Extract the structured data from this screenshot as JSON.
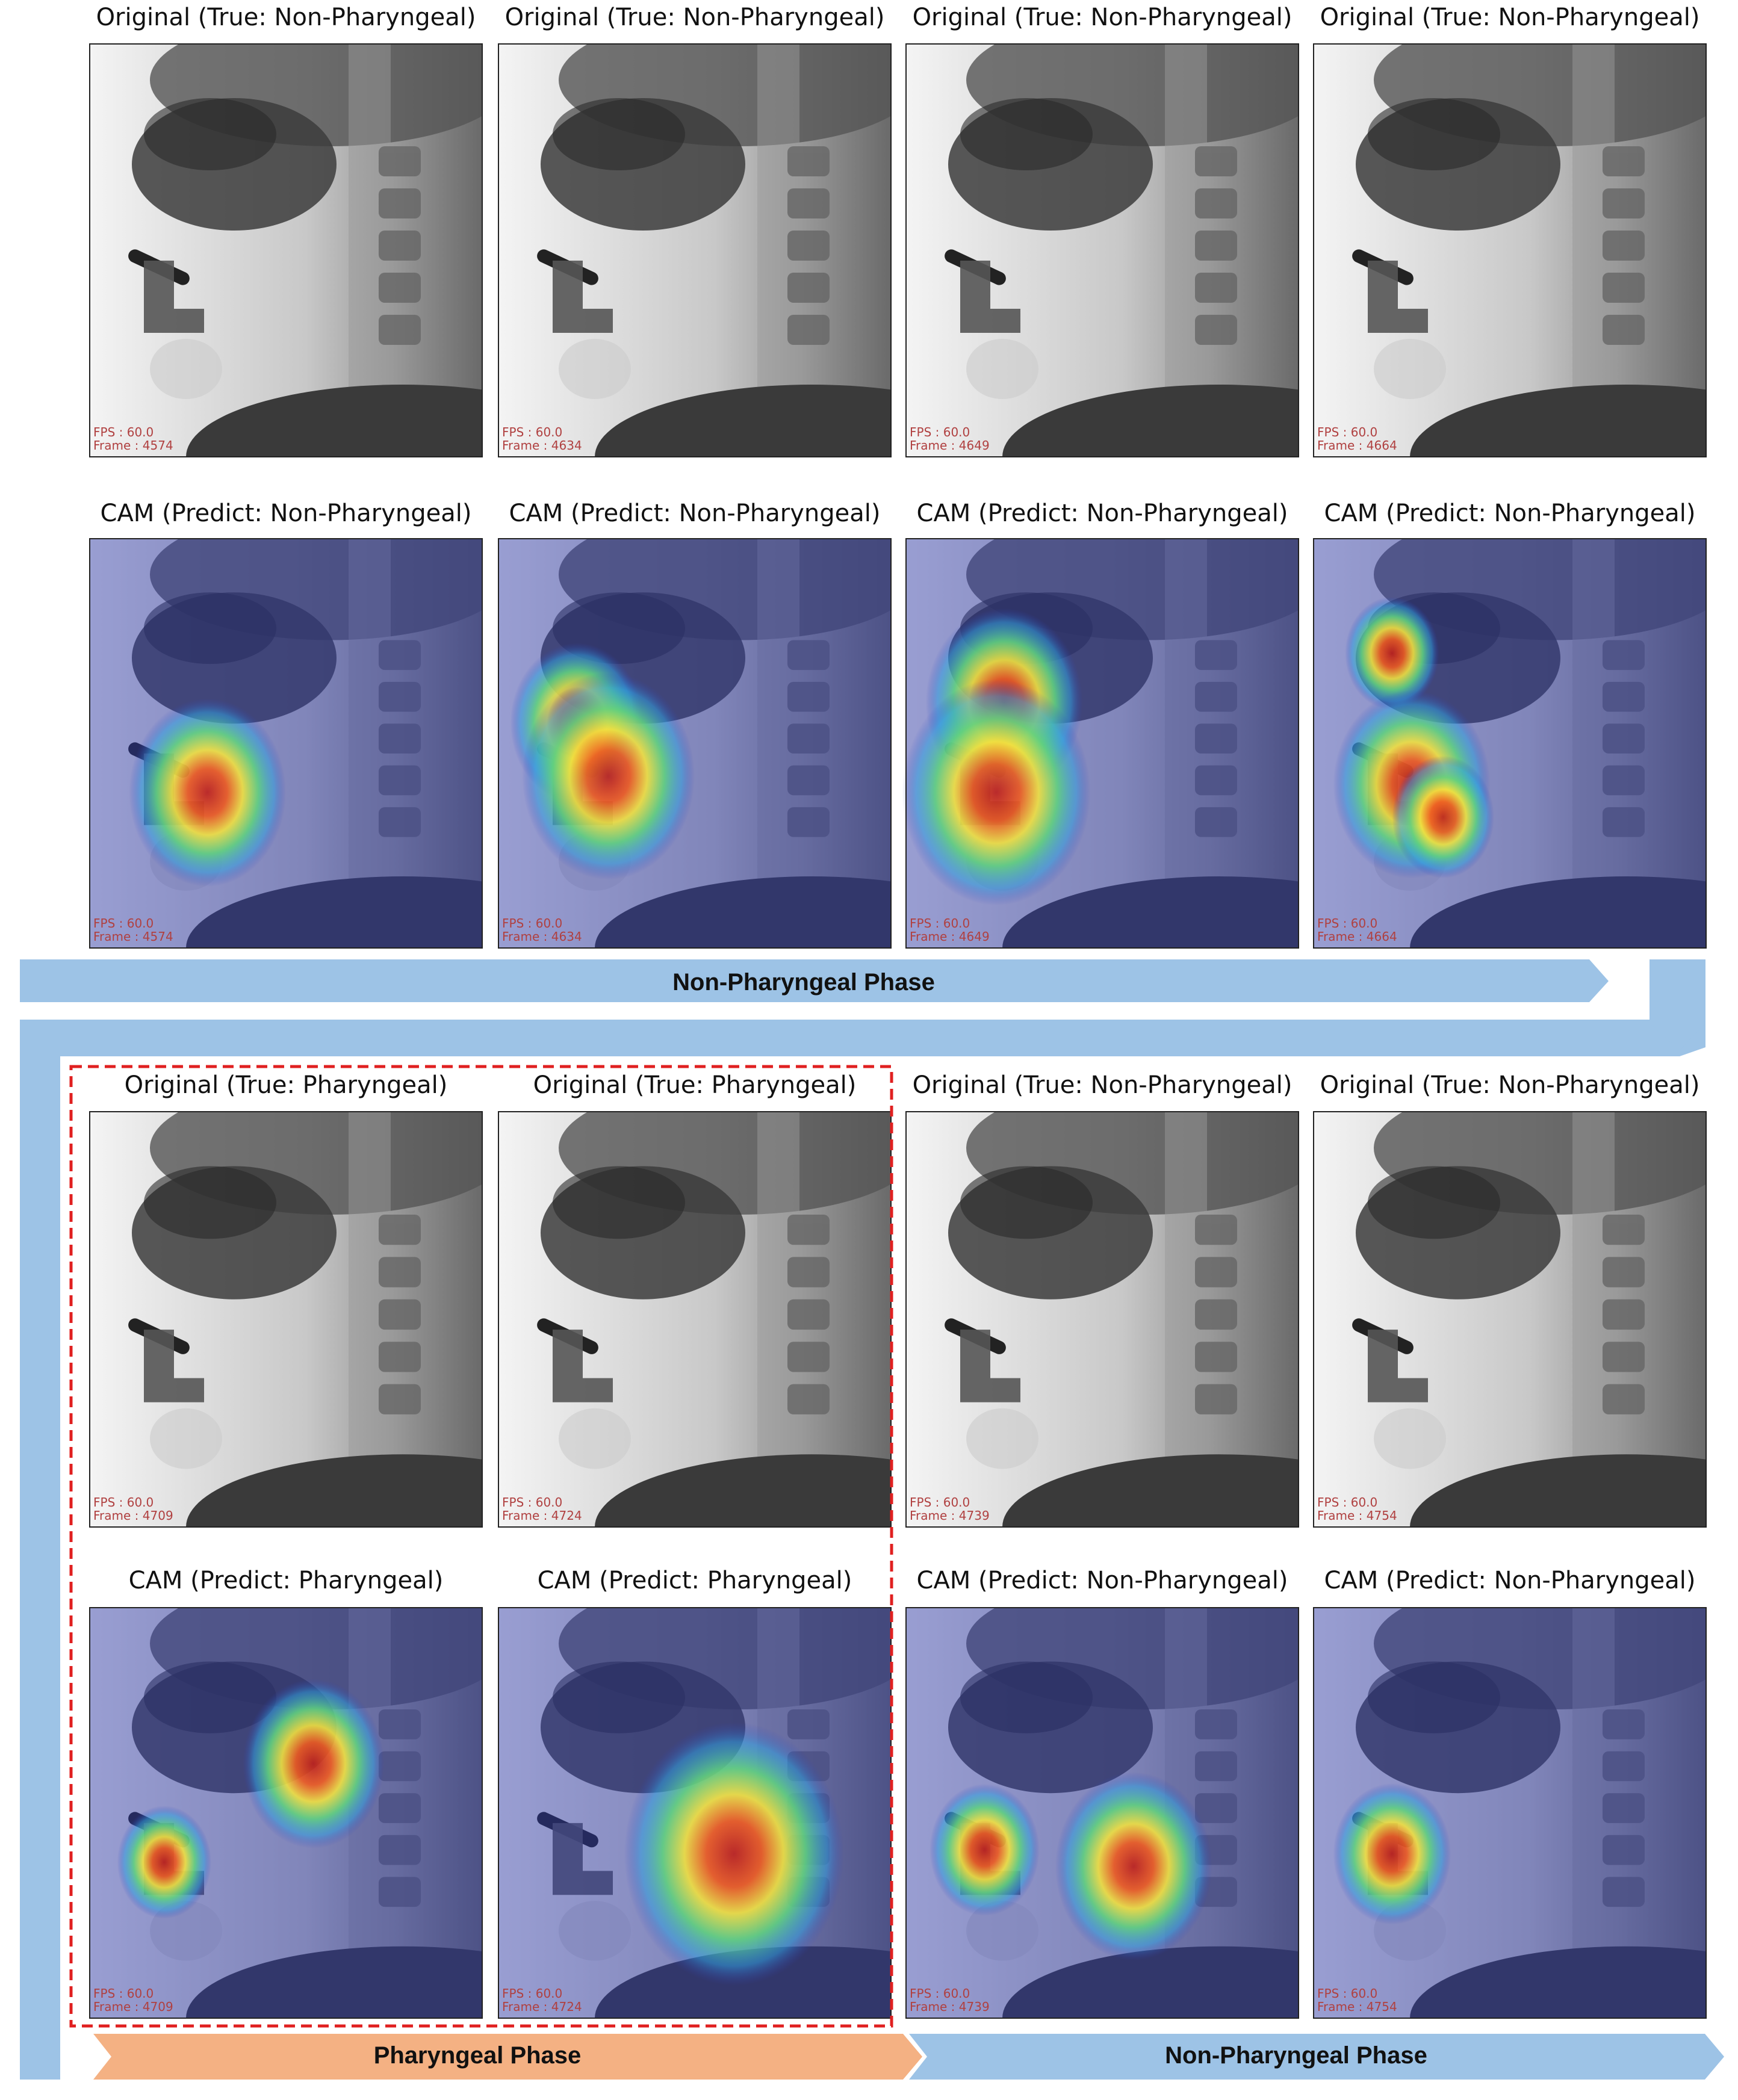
{
  "rows": [
    {
      "panels": [
        {
          "title": "Original (True: Non-Pharyngeal)",
          "fps": "FPS : 60.0",
          "frame": "Frame : 4574"
        },
        {
          "title": "Original (True: Non-Pharyngeal)",
          "fps": "FPS : 60.0",
          "frame": "Frame : 4634"
        },
        {
          "title": "Original (True: Non-Pharyngeal)",
          "fps": "FPS : 60.0",
          "frame": "Frame : 4649"
        },
        {
          "title": "Original (True: Non-Pharyngeal)",
          "fps": "FPS : 60.0",
          "frame": "Frame : 4664"
        }
      ]
    },
    {
      "panels": [
        {
          "title": "CAM (Predict: Non-Pharyngeal)",
          "fps": "FPS : 60.0",
          "frame": "Frame : 4574"
        },
        {
          "title": "CAM (Predict: Non-Pharyngeal)",
          "fps": "FPS : 60.0",
          "frame": "Frame : 4634"
        },
        {
          "title": "CAM (Predict: Non-Pharyngeal)",
          "fps": "FPS : 60.0",
          "frame": "Frame : 4649"
        },
        {
          "title": "CAM (Predict: Non-Pharyngeal)",
          "fps": "FPS : 60.0",
          "frame": "Frame : 4664"
        }
      ]
    },
    {
      "panels": [
        {
          "title": "Original (True: Pharyngeal)",
          "fps": "FPS : 60.0",
          "frame": "Frame : 4709"
        },
        {
          "title": "Original (True: Pharyngeal)",
          "fps": "FPS : 60.0",
          "frame": "Frame : 4724"
        },
        {
          "title": "Original (True: Non-Pharyngeal)",
          "fps": "FPS : 60.0",
          "frame": "Frame : 4739"
        },
        {
          "title": "Original (True: Non-Pharyngeal)",
          "fps": "FPS : 60.0",
          "frame": "Frame : 4754"
        }
      ]
    },
    {
      "panels": [
        {
          "title": "CAM (Predict: Pharyngeal)",
          "fps": "FPS : 60.0",
          "frame": "Frame : 4709"
        },
        {
          "title": "CAM (Predict: Pharyngeal)",
          "fps": "FPS : 60.0",
          "frame": "Frame : 4724"
        },
        {
          "title": "CAM (Predict: Non-Pharyngeal)",
          "fps": "FPS : 60.0",
          "frame": "Frame : 4739"
        },
        {
          "title": "CAM (Predict: Non-Pharyngeal)",
          "fps": "FPS : 60.0",
          "frame": "Frame : 4754"
        }
      ]
    }
  ],
  "banners": [
    "Non-Pharyngeal Phase",
    "Pharyngeal Phase",
    "Non-Pharyngeal Phase"
  ]
}
